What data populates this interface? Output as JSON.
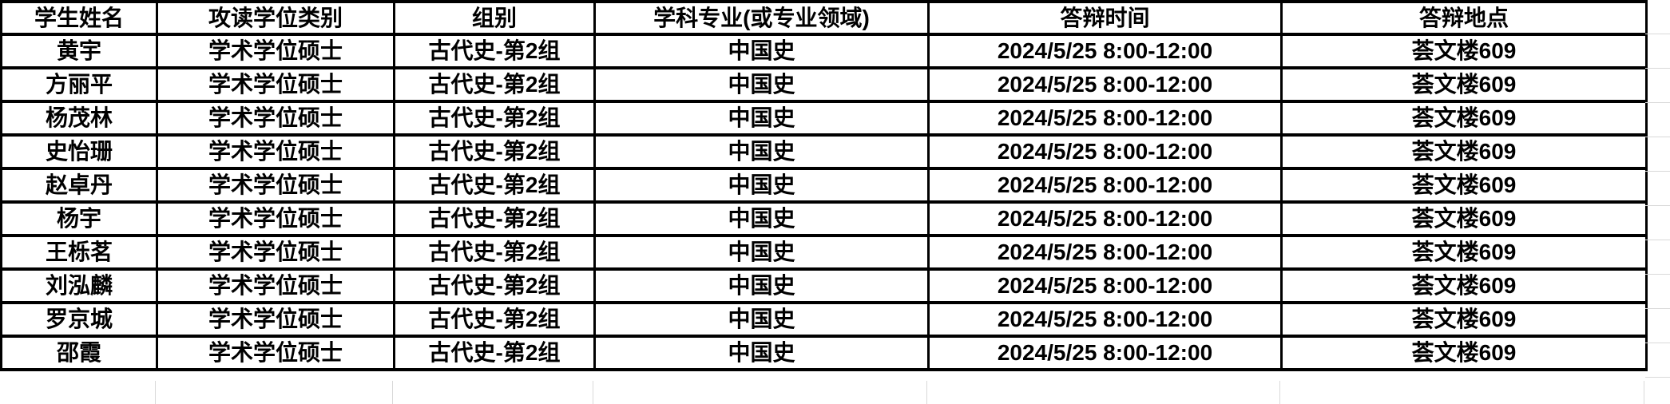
{
  "colors": {
    "table_border": "#000000",
    "text": "#000000",
    "background": "#ffffff",
    "faint_gridline": "#d9d9d9"
  },
  "table": {
    "columns": [
      {
        "key": "name",
        "label": "学生姓名"
      },
      {
        "key": "degree",
        "label": "攻读学位类别"
      },
      {
        "key": "group",
        "label": "组别"
      },
      {
        "key": "major",
        "label": "学科专业(或专业领域)"
      },
      {
        "key": "time",
        "label": "答辩时间"
      },
      {
        "key": "place",
        "label": "答辩地点"
      }
    ],
    "rows": [
      {
        "name": "黄宇",
        "degree": "学术学位硕士",
        "group": "古代史-第2组",
        "major": "中国史",
        "time": "2024/5/25 8:00-12:00",
        "place": "荟文楼609"
      },
      {
        "name": "方丽平",
        "degree": "学术学位硕士",
        "group": "古代史-第2组",
        "major": "中国史",
        "time": "2024/5/25 8:00-12:00",
        "place": "荟文楼609"
      },
      {
        "name": "杨茂林",
        "degree": "学术学位硕士",
        "group": "古代史-第2组",
        "major": "中国史",
        "time": "2024/5/25 8:00-12:00",
        "place": "荟文楼609"
      },
      {
        "name": "史怡珊",
        "degree": "学术学位硕士",
        "group": "古代史-第2组",
        "major": "中国史",
        "time": "2024/5/25 8:00-12:00",
        "place": "荟文楼609"
      },
      {
        "name": "赵卓丹",
        "degree": "学术学位硕士",
        "group": "古代史-第2组",
        "major": "中国史",
        "time": "2024/5/25 8:00-12:00",
        "place": "荟文楼609"
      },
      {
        "name": "杨宇",
        "degree": "学术学位硕士",
        "group": "古代史-第2组",
        "major": "中国史",
        "time": "2024/5/25 8:00-12:00",
        "place": "荟文楼609"
      },
      {
        "name": "王栎茗",
        "degree": "学术学位硕士",
        "group": "古代史-第2组",
        "major": "中国史",
        "time": "2024/5/25 8:00-12:00",
        "place": "荟文楼609"
      },
      {
        "name": "刘泓麟",
        "degree": "学术学位硕士",
        "group": "古代史-第2组",
        "major": "中国史",
        "time": "2024/5/25 8:00-12:00",
        "place": "荟文楼609"
      },
      {
        "name": "罗京城",
        "degree": "学术学位硕士",
        "group": "古代史-第2组",
        "major": "中国史",
        "time": "2024/5/25 8:00-12:00",
        "place": "荟文楼609"
      },
      {
        "name": "邵霞",
        "degree": "学术学位硕士",
        "group": "古代史-第2组",
        "major": "中国史",
        "time": "2024/5/25 8:00-12:00",
        "place": "荟文楼609"
      }
    ]
  }
}
